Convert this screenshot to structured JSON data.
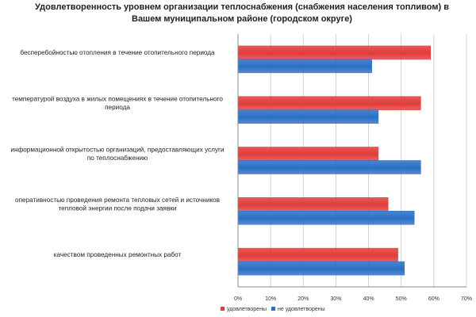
{
  "chart_data": {
    "type": "bar",
    "orientation": "horizontal",
    "title": "Удовлетворенность уровнем организации теплоснабжения (снабжения населения топливом) в Вашем муниципальном районе (городском округе)",
    "categories": [
      [
        "бесперебойностью отопления в течение отопительного периода"
      ],
      [
        "температурой воздуха в жилых помещениях в течение отопительного",
        "периода"
      ],
      [
        "информационной открытостью организаций, предоставляющих услуги",
        "по теплоснабжению"
      ],
      [
        "оперативностью проведения ремонта тепловых сетей и источников",
        "тепловой энергии после подачи заявки"
      ],
      [
        "качеством проведенных ремонтных  работ"
      ]
    ],
    "series": [
      {
        "name": "удовлетворены",
        "color": "#e23b3b",
        "values": [
          59,
          56,
          43,
          46,
          49
        ]
      },
      {
        "name": "не удовлетворены",
        "color": "#2a6fc4",
        "values": [
          41,
          43,
          56,
          54,
          51
        ]
      }
    ],
    "xlim": [
      0,
      70
    ],
    "xticks": [
      "0%",
      "10%",
      "20%",
      "30%",
      "40%",
      "50%",
      "60%",
      "70%"
    ],
    "grid": true,
    "legend_position": "bottom"
  }
}
